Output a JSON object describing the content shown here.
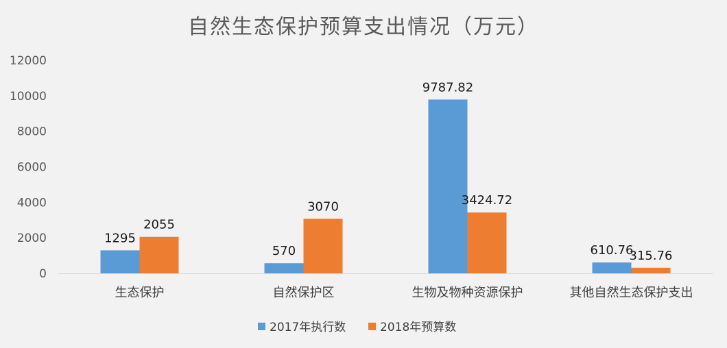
{
  "chart_data": {
    "type": "bar",
    "title": "自然生态保护预算支出情况（万元）",
    "categories": [
      "生态保护",
      "自然保护区",
      "生物及物种资源保护",
      "其他自然生态保护支出"
    ],
    "series": [
      {
        "name": "2017年执行数",
        "color": "#5b9bd5",
        "values": [
          1295,
          570,
          9787.82,
          610.76
        ],
        "labels": [
          "1295",
          "570",
          "9787.82",
          "610.76"
        ]
      },
      {
        "name": "2018年预算数",
        "color": "#ed7d31",
        "values": [
          2055,
          3070,
          3424.72,
          315.76
        ],
        "labels": [
          "2055",
          "3070",
          "3424.72",
          "315.76"
        ]
      }
    ],
    "ylim": [
      0,
      12000
    ],
    "yticks": [
      0,
      2000,
      4000,
      6000,
      8000,
      10000,
      12000
    ],
    "grid": false,
    "legend": "bottom"
  }
}
